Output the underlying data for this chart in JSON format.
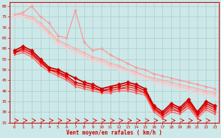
{
  "bg_color": "#cce8e8",
  "grid_color": "#aacccc",
  "xlabel": "Vent moyen/en rafales ( km/h )",
  "xlabel_color": "#cc0000",
  "tick_color": "#cc0000",
  "axis_color": "#cc0000",
  "xlim": [
    -0.5,
    23.5
  ],
  "ylim": [
    25,
    82
  ],
  "yticks": [
    25,
    30,
    35,
    40,
    45,
    50,
    55,
    60,
    65,
    70,
    75,
    80
  ],
  "xticks": [
    0,
    1,
    2,
    3,
    4,
    5,
    6,
    7,
    8,
    9,
    10,
    11,
    12,
    13,
    14,
    15,
    16,
    17,
    18,
    19,
    20,
    21,
    22,
    23
  ],
  "lines": [
    {
      "x": [
        0,
        1,
        2,
        3,
        4,
        5,
        6,
        7,
        8,
        9,
        10,
        11,
        12,
        13,
        14,
        15,
        16,
        17,
        18,
        19,
        20,
        21,
        22,
        23
      ],
      "y": [
        76,
        77,
        80,
        75,
        72,
        66,
        65,
        78,
        63,
        59,
        60,
        57,
        55,
        53,
        51,
        50,
        48,
        47,
        46,
        45,
        44,
        43,
        42,
        41
      ],
      "color": "#ff9999",
      "lw": 1.0,
      "marker": "D",
      "ms": 2.0,
      "zorder": 2
    },
    {
      "x": [
        0,
        1,
        2,
        3,
        4,
        5,
        6,
        7,
        8,
        9,
        10,
        11,
        12,
        13,
        14,
        15,
        16,
        17,
        18,
        19,
        20,
        21,
        22,
        23
      ],
      "y": [
        76,
        76,
        75,
        72,
        68,
        64,
        62,
        60,
        58,
        56,
        55,
        53,
        52,
        50,
        49,
        47,
        46,
        45,
        44,
        43,
        42,
        41,
        40,
        39
      ],
      "color": "#ffaaaa",
      "lw": 1.0,
      "marker": "D",
      "ms": 1.8,
      "zorder": 2
    },
    {
      "x": [
        0,
        1,
        2,
        3,
        4,
        5,
        6,
        7,
        8,
        9,
        10,
        11,
        12,
        13,
        14,
        15,
        16,
        17,
        18,
        19,
        20,
        21,
        22,
        23
      ],
      "y": [
        75,
        75,
        74,
        71,
        67,
        63,
        61,
        59,
        57,
        55,
        54,
        52,
        51,
        50,
        48,
        47,
        45,
        44,
        43,
        42,
        41,
        40,
        39,
        38
      ],
      "color": "#ffbbbb",
      "lw": 0.9,
      "marker": "D",
      "ms": 1.5,
      "zorder": 2
    },
    {
      "x": [
        0,
        1,
        2,
        3,
        4,
        5,
        6,
        7,
        8,
        9,
        10,
        11,
        12,
        13,
        14,
        15,
        16,
        17,
        18,
        19,
        20,
        21,
        22,
        23
      ],
      "y": [
        75,
        75,
        73,
        70,
        66,
        62,
        60,
        58,
        56,
        54,
        53,
        51,
        50,
        49,
        47,
        46,
        44,
        43,
        42,
        41,
        40,
        39,
        38,
        37
      ],
      "color": "#ffcccc",
      "lw": 0.8,
      "marker": "D",
      "ms": 1.5,
      "zorder": 2
    },
    {
      "x": [
        0,
        1,
        2,
        3,
        4,
        5,
        6,
        7,
        8,
        9,
        10,
        11,
        12,
        13,
        14,
        15,
        16,
        17,
        18,
        19,
        20,
        21,
        22,
        23
      ],
      "y": [
        59,
        61,
        59,
        55,
        51,
        50,
        48,
        46,
        44,
        43,
        41,
        42,
        43,
        44,
        43,
        41,
        33,
        30,
        34,
        32,
        36,
        30,
        35,
        33
      ],
      "color": "#cc0000",
      "lw": 1.4,
      "marker": "D",
      "ms": 2.8,
      "zorder": 4
    },
    {
      "x": [
        0,
        1,
        2,
        3,
        4,
        5,
        6,
        7,
        8,
        9,
        10,
        11,
        12,
        13,
        14,
        15,
        16,
        17,
        18,
        19,
        20,
        21,
        22,
        23
      ],
      "y": [
        58,
        60,
        58,
        54,
        50,
        49,
        47,
        44,
        43,
        42,
        40,
        41,
        42,
        43,
        42,
        40,
        32,
        29,
        33,
        31,
        35,
        29,
        34,
        32
      ],
      "color": "#dd0000",
      "lw": 1.2,
      "marker": "D",
      "ms": 2.4,
      "zorder": 4
    },
    {
      "x": [
        0,
        1,
        2,
        3,
        4,
        5,
        6,
        7,
        8,
        9,
        10,
        11,
        12,
        13,
        14,
        15,
        16,
        17,
        18,
        19,
        20,
        21,
        22,
        23
      ],
      "y": [
        58,
        59,
        57,
        54,
        50,
        49,
        46,
        43,
        42,
        41,
        40,
        40,
        41,
        42,
        41,
        39,
        32,
        28,
        32,
        30,
        34,
        28,
        33,
        31
      ],
      "color": "#ee2222",
      "lw": 1.0,
      "marker": "D",
      "ms": 2.0,
      "zorder": 3
    },
    {
      "x": [
        0,
        1,
        2,
        3,
        4,
        5,
        6,
        7,
        8,
        9,
        10,
        11,
        12,
        13,
        14,
        15,
        16,
        17,
        18,
        19,
        20,
        21,
        22,
        23
      ],
      "y": [
        58,
        59,
        57,
        53,
        50,
        48,
        46,
        43,
        42,
        41,
        40,
        40,
        41,
        41,
        40,
        39,
        31,
        28,
        31,
        30,
        33,
        28,
        32,
        30
      ],
      "color": "#ff3333",
      "lw": 0.9,
      "marker": "D",
      "ms": 1.8,
      "zorder": 3
    },
    {
      "x": [
        0,
        1,
        2,
        3,
        4,
        5,
        6,
        7,
        8,
        9,
        10,
        11,
        12,
        13,
        14,
        15,
        16,
        17,
        18,
        19,
        20,
        21,
        22,
        23
      ],
      "y": [
        57,
        58,
        56,
        52,
        49,
        47,
        45,
        42,
        41,
        40,
        39,
        39,
        40,
        40,
        39,
        38,
        30,
        27,
        30,
        29,
        32,
        27,
        31,
        29
      ],
      "color": "#ff5555",
      "lw": 0.8,
      "marker": "D",
      "ms": 1.5,
      "zorder": 3
    }
  ]
}
